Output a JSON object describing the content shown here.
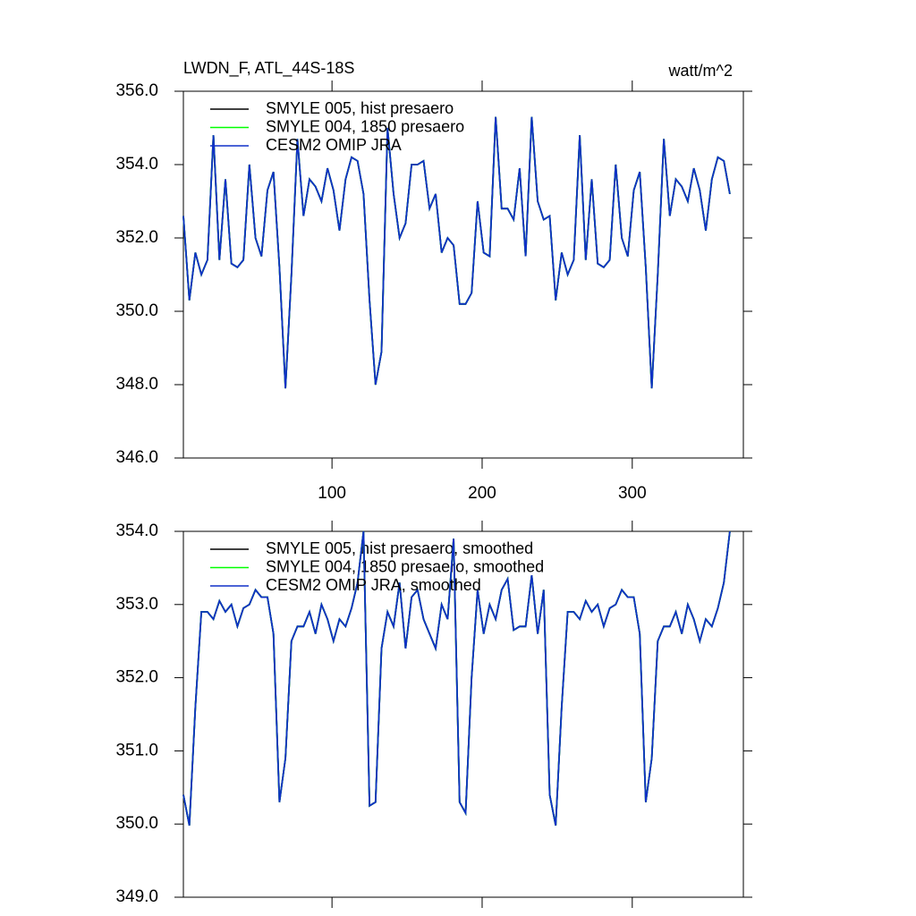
{
  "chart_data": [
    {
      "type": "line",
      "title": "LWDN_F, ATL_44S-18S",
      "units_label": "watt/m^2",
      "x": [
        1,
        5,
        9,
        13,
        17,
        21,
        25,
        29,
        33,
        37,
        41,
        45,
        49,
        53,
        57,
        61,
        65,
        69,
        73,
        77,
        81,
        85,
        89,
        93,
        97,
        101,
        105,
        109,
        113,
        117,
        121,
        125,
        129,
        133,
        137,
        141,
        145,
        149,
        153,
        157,
        161,
        165,
        169,
        173,
        177,
        181,
        185,
        189,
        193,
        197,
        201,
        205,
        209,
        213,
        217,
        221,
        225,
        229,
        233,
        237,
        241,
        245,
        249,
        253,
        257,
        261,
        265,
        269,
        273,
        277,
        281,
        285,
        289,
        293,
        297,
        301,
        305,
        309,
        313,
        317,
        321,
        325,
        329,
        333,
        337,
        341,
        345,
        349,
        353,
        357,
        361,
        365
      ],
      "xlim": [
        1,
        374
      ],
      "xticks": [
        100,
        200,
        300
      ],
      "show_xtick_labels": true,
      "ylim": [
        346,
        356
      ],
      "yticks": [
        {
          "value": 346,
          "label": "346.0"
        },
        {
          "value": 348,
          "label": "348.0"
        },
        {
          "value": 350,
          "label": "350.0"
        },
        {
          "value": 352,
          "label": "352.0"
        },
        {
          "value": 354,
          "label": "354.0"
        },
        {
          "value": 356,
          "label": "356.0"
        }
      ],
      "series": [
        {
          "name": "SMYLE 005, hist presaero",
          "color": "#000000",
          "values": [
            352.6,
            350.3,
            351.6,
            351.0,
            351.4,
            354.8,
            351.4,
            353.6,
            351.3,
            351.2,
            351.4,
            354.0,
            352.0,
            351.5,
            353.3,
            353.8,
            351.2,
            347.9,
            351.0,
            354.7,
            352.6,
            353.6,
            353.4,
            353.0,
            353.9,
            353.3,
            352.2,
            353.6,
            354.2,
            354.1,
            353.2,
            350.3,
            348.0,
            348.9,
            355.0,
            353.2,
            352.0,
            352.4,
            354.0,
            354.0,
            354.1,
            352.8,
            353.2,
            351.6,
            352.0,
            351.8,
            350.2,
            350.2,
            350.5,
            353.0,
            351.6,
            351.5,
            355.3,
            352.8,
            352.8,
            352.5,
            353.9,
            351.5,
            355.3,
            353.0,
            352.5,
            352.6,
            350.3,
            351.6,
            351.0,
            351.4,
            354.8,
            351.4,
            353.6,
            351.3,
            351.2,
            351.4,
            354.0,
            352.0,
            351.5,
            353.3,
            353.8,
            351.2,
            347.9,
            351.0,
            354.7,
            352.6,
            353.6,
            353.4,
            353.0,
            353.9,
            353.3,
            352.2,
            353.6,
            354.2,
            354.1,
            353.2
          ]
        },
        {
          "name": "SMYLE 004, 1850 presaero",
          "color": "#00ff00",
          "values": [
            352.6,
            350.3,
            351.6,
            351.0,
            351.4,
            354.8,
            351.4,
            353.6,
            351.3,
            351.2,
            351.4,
            354.0,
            352.0,
            351.5,
            353.3,
            353.8,
            351.2,
            347.9,
            351.0,
            354.7,
            352.6,
            353.6,
            353.4,
            353.0,
            353.9,
            353.3,
            352.2,
            353.6,
            354.2,
            354.1,
            353.2,
            350.3,
            348.0,
            348.9,
            355.0,
            353.2,
            352.0,
            352.4,
            354.0,
            354.0,
            354.1,
            352.8,
            353.2,
            351.6,
            352.0,
            351.8,
            350.2,
            350.2,
            350.5,
            353.0,
            351.6,
            351.5,
            355.3,
            352.8,
            352.8,
            352.5,
            353.9,
            351.5,
            355.3,
            353.0,
            352.5,
            352.6,
            350.3,
            351.6,
            351.0,
            351.4,
            354.8,
            351.4,
            353.6,
            351.3,
            351.2,
            351.4,
            354.0,
            352.0,
            351.5,
            353.3,
            353.8,
            351.2,
            347.9,
            351.0,
            354.7,
            352.6,
            353.6,
            353.4,
            353.0,
            353.9,
            353.3,
            352.2,
            353.6,
            354.2,
            354.1,
            353.2
          ]
        },
        {
          "name": "CESM2 OMIP JRA",
          "color": "#1030c8",
          "values": [
            352.6,
            350.3,
            351.6,
            351.0,
            351.4,
            354.8,
            351.4,
            353.6,
            351.3,
            351.2,
            351.4,
            354.0,
            352.0,
            351.5,
            353.3,
            353.8,
            351.2,
            347.9,
            351.0,
            354.7,
            352.6,
            353.6,
            353.4,
            353.0,
            353.9,
            353.3,
            352.2,
            353.6,
            354.2,
            354.1,
            353.2,
            350.3,
            348.0,
            348.9,
            355.0,
            353.2,
            352.0,
            352.4,
            354.0,
            354.0,
            354.1,
            352.8,
            353.2,
            351.6,
            352.0,
            351.8,
            350.2,
            350.2,
            350.5,
            353.0,
            351.6,
            351.5,
            355.3,
            352.8,
            352.8,
            352.5,
            353.9,
            351.5,
            355.3,
            353.0,
            352.5,
            352.6,
            350.3,
            351.6,
            351.0,
            351.4,
            354.8,
            351.4,
            353.6,
            351.3,
            351.2,
            351.4,
            354.0,
            352.0,
            351.5,
            353.3,
            353.8,
            351.2,
            347.9,
            351.0,
            354.7,
            352.6,
            353.6,
            353.4,
            353.0,
            353.9,
            353.3,
            352.2,
            353.6,
            354.2,
            354.1,
            353.2
          ]
        }
      ]
    },
    {
      "type": "line",
      "x": [
        1,
        5,
        9,
        13,
        17,
        21,
        25,
        29,
        33,
        37,
        41,
        45,
        49,
        53,
        57,
        61,
        65,
        69,
        73,
        77,
        81,
        85,
        89,
        93,
        97,
        101,
        105,
        109,
        113,
        117,
        121,
        125,
        129,
        133,
        137,
        141,
        145,
        149,
        153,
        157,
        161,
        165,
        169,
        173,
        177,
        181,
        185,
        189,
        193,
        197,
        201,
        205,
        209,
        213,
        217,
        221,
        225,
        229,
        233,
        237,
        241,
        245,
        249,
        253,
        257,
        261,
        265,
        269,
        273,
        277,
        281,
        285,
        289,
        293,
        297,
        301,
        305,
        309,
        313,
        317,
        321,
        325,
        329,
        333,
        337,
        341,
        345,
        349,
        353,
        357,
        361,
        365
      ],
      "xlim": [
        1,
        374
      ],
      "xticks": [
        100,
        200,
        300
      ],
      "show_xtick_labels": false,
      "ylim": [
        349,
        354
      ],
      "yticks": [
        {
          "value": 349,
          "label": "349.0"
        },
        {
          "value": 350,
          "label": "350.0"
        },
        {
          "value": 351,
          "label": "351.0"
        },
        {
          "value": 352,
          "label": "352.0"
        },
        {
          "value": 353,
          "label": "353.0"
        },
        {
          "value": 354,
          "label": "354.0"
        }
      ],
      "series": [
        {
          "name": "SMYLE 005, hist presaero, smoothed",
          "color": "#000000",
          "values": [
            350.4,
            349.98,
            351.6,
            352.9,
            352.9,
            352.8,
            353.05,
            352.9,
            353.0,
            352.7,
            352.95,
            353.0,
            353.2,
            353.1,
            353.1,
            352.6,
            350.3,
            350.9,
            352.5,
            352.7,
            352.7,
            352.9,
            352.6,
            353.0,
            352.8,
            352.5,
            352.8,
            352.7,
            352.95,
            353.3,
            354.0,
            350.25,
            350.3,
            352.4,
            352.9,
            352.7,
            353.3,
            352.4,
            353.1,
            353.2,
            352.8,
            352.6,
            352.4,
            353.0,
            352.8,
            353.9,
            350.3,
            350.15,
            352.0,
            353.2,
            352.6,
            353.0,
            352.8,
            353.2,
            353.35,
            352.65,
            352.7,
            352.7,
            353.4,
            352.6,
            353.2,
            350.4,
            349.98,
            351.6,
            352.9,
            352.9,
            352.8,
            353.05,
            352.9,
            353.0,
            352.7,
            352.95,
            353.0,
            353.2,
            353.1,
            353.1,
            352.6,
            350.3,
            350.9,
            352.5,
            352.7,
            352.7,
            352.9,
            352.6,
            353.0,
            352.8,
            352.5,
            352.8,
            352.7,
            352.95,
            353.3,
            354.0
          ]
        },
        {
          "name": "SMYLE 004, 1850 presaero, smoothed",
          "color": "#00ff00",
          "values": [
            350.4,
            349.98,
            351.6,
            352.9,
            352.9,
            352.8,
            353.05,
            352.9,
            353.0,
            352.7,
            352.95,
            353.0,
            353.2,
            353.1,
            353.1,
            352.6,
            350.3,
            350.9,
            352.5,
            352.7,
            352.7,
            352.9,
            352.6,
            353.0,
            352.8,
            352.5,
            352.8,
            352.7,
            352.95,
            353.3,
            354.0,
            350.25,
            350.3,
            352.4,
            352.9,
            352.7,
            353.3,
            352.4,
            353.1,
            353.2,
            352.8,
            352.6,
            352.4,
            353.0,
            352.8,
            353.9,
            350.3,
            350.15,
            352.0,
            353.2,
            352.6,
            353.0,
            352.8,
            353.2,
            353.35,
            352.65,
            352.7,
            352.7,
            353.4,
            352.6,
            353.2,
            350.4,
            349.98,
            351.6,
            352.9,
            352.9,
            352.8,
            353.05,
            352.9,
            353.0,
            352.7,
            352.95,
            353.0,
            353.2,
            353.1,
            353.1,
            352.6,
            350.3,
            350.9,
            352.5,
            352.7,
            352.7,
            352.9,
            352.6,
            353.0,
            352.8,
            352.5,
            352.8,
            352.7,
            352.95,
            353.3,
            354.0
          ]
        },
        {
          "name": "CESM2 OMIP JRA, smoothed",
          "color": "#1030c8",
          "values": [
            350.4,
            349.98,
            351.6,
            352.9,
            352.9,
            352.8,
            353.05,
            352.9,
            353.0,
            352.7,
            352.95,
            353.0,
            353.2,
            353.1,
            353.1,
            352.6,
            350.3,
            350.9,
            352.5,
            352.7,
            352.7,
            352.9,
            352.6,
            353.0,
            352.8,
            352.5,
            352.8,
            352.7,
            352.95,
            353.3,
            354.0,
            350.25,
            350.3,
            352.4,
            352.9,
            352.7,
            353.3,
            352.4,
            353.1,
            353.2,
            352.8,
            352.6,
            352.4,
            353.0,
            352.8,
            353.9,
            350.3,
            350.15,
            352.0,
            353.2,
            352.6,
            353.0,
            352.8,
            353.2,
            353.35,
            352.65,
            352.7,
            352.7,
            353.4,
            352.6,
            353.2,
            350.4,
            349.98,
            351.6,
            352.9,
            352.9,
            352.8,
            353.05,
            352.9,
            353.0,
            352.7,
            352.95,
            353.0,
            353.2,
            353.1,
            353.1,
            352.6,
            350.3,
            350.9,
            352.5,
            352.7,
            352.7,
            352.9,
            352.6,
            353.0,
            352.8,
            352.5,
            352.8,
            352.7,
            352.95,
            353.3,
            354.0
          ]
        }
      ]
    }
  ]
}
